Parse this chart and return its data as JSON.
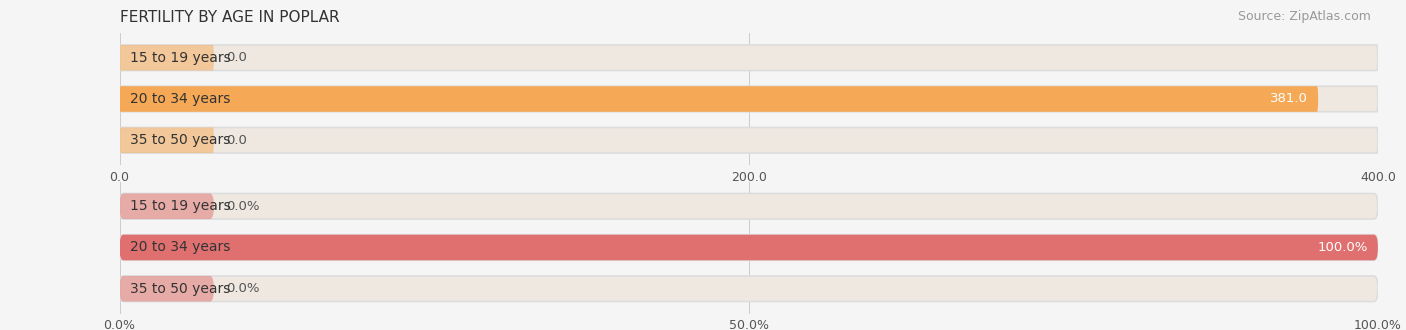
{
  "title": "FERTILITY BY AGE IN POPLAR",
  "source": "Source: ZipAtlas.com",
  "top_chart": {
    "categories": [
      "15 to 19 years",
      "20 to 34 years",
      "35 to 50 years"
    ],
    "values": [
      0.0,
      381.0,
      0.0
    ],
    "xlim": [
      0,
      400
    ],
    "xticks": [
      0.0,
      200.0,
      400.0
    ],
    "xtick_labels": [
      "0.0",
      "200.0",
      "400.0"
    ],
    "bar_color": "#F5A855",
    "bar_bg_color": "#EFE8E0",
    "value_label_color_inside": "#FFFFFF",
    "value_label_color_outside": "#666666"
  },
  "bottom_chart": {
    "categories": [
      "15 to 19 years",
      "20 to 34 years",
      "35 to 50 years"
    ],
    "values": [
      0.0,
      100.0,
      0.0
    ],
    "xlim": [
      0,
      100
    ],
    "xticks": [
      0.0,
      50.0,
      100.0
    ],
    "xtick_labels": [
      "0.0%",
      "50.0%",
      "100.0%"
    ],
    "bar_color": "#E07070",
    "bar_bg_color": "#EFE8E0",
    "value_label_color_inside": "#FFFFFF",
    "value_label_color_outside": "#666666"
  },
  "bg_color": "#F5F5F5",
  "bar_height": 0.62,
  "label_fontsize": 9.5,
  "tick_fontsize": 9,
  "title_fontsize": 11,
  "source_fontsize": 9,
  "category_fontsize": 10,
  "category_text_color": "#333333"
}
